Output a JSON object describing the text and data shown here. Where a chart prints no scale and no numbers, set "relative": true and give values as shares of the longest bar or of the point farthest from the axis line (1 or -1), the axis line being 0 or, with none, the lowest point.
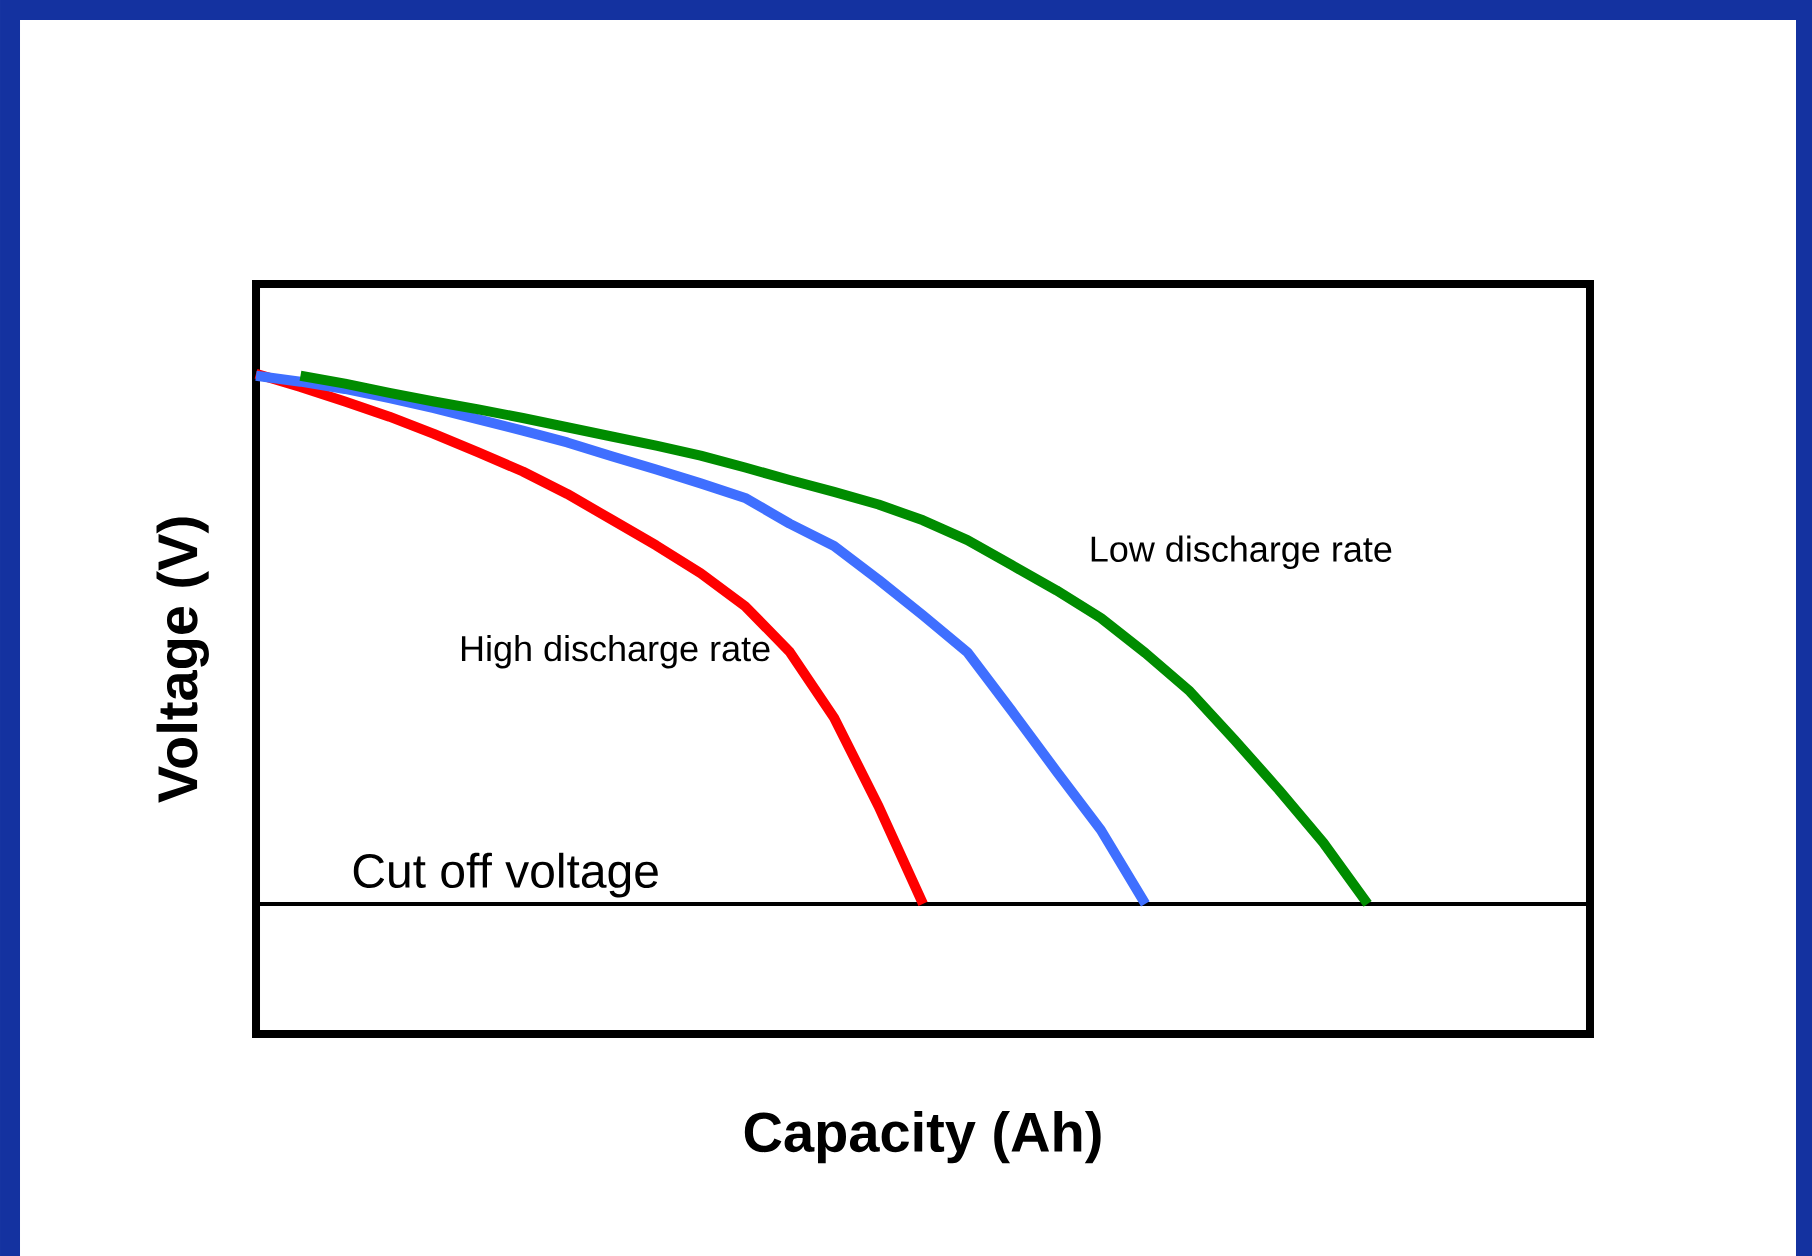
{
  "chart_data": {
    "type": "line",
    "relative": true,
    "xlabel": "Capacity (Ah)",
    "ylabel": "Voltage (V)",
    "tick_labels": false,
    "categories": [
      null,
      null,
      null,
      null,
      null,
      null,
      null,
      null,
      null,
      null,
      null,
      null,
      null,
      null,
      null,
      null,
      null,
      null,
      null,
      null,
      null,
      null,
      null,
      null,
      null,
      null,
      null,
      null,
      null,
      null,
      null
    ],
    "series": [
      {
        "name": "High discharge rate",
        "color": "#ff0000",
        "values": [
          1.0,
          0.98,
          0.958,
          0.935,
          0.909,
          0.881,
          0.852,
          0.818,
          0.779,
          0.74,
          0.698,
          0.648,
          0.579,
          0.479,
          0.345,
          0.197,
          null,
          null,
          null,
          null,
          null,
          null,
          null,
          null,
          null,
          null,
          null,
          null,
          null,
          null,
          null
        ]
      },
      {
        "color": "#3f6fff",
        "values": [
          0.997,
          0.988,
          0.977,
          0.963,
          0.948,
          0.931,
          0.914,
          0.896,
          0.875,
          0.855,
          0.834,
          0.812,
          0.773,
          0.739,
          0.688,
          0.634,
          0.578,
          0.489,
          0.398,
          0.309,
          0.197,
          null,
          null,
          null,
          null,
          null,
          null,
          null,
          null,
          null,
          null
        ]
      },
      {
        "name": "Low discharge rate",
        "color": "#008c00",
        "values": [
          null,
          0.997,
          0.985,
          0.971,
          0.958,
          0.946,
          0.933,
          0.919,
          0.905,
          0.891,
          0.876,
          0.858,
          0.839,
          0.821,
          0.802,
          0.778,
          0.748,
          0.71,
          0.672,
          0.63,
          0.577,
          0.519,
          0.446,
          0.37,
          0.29,
          0.197,
          null,
          null,
          null,
          null,
          null
        ]
      }
    ],
    "ref_lines": [
      {
        "axis": "y",
        "value": 0.197,
        "label": "Cut off voltage",
        "color": "#000000"
      }
    ]
  }
}
